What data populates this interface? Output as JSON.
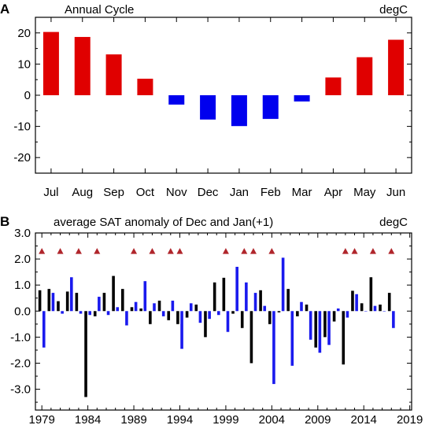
{
  "panel_a": {
    "letter": "A",
    "title": "Annual Cycle",
    "units": "degC"
  },
  "panel_b": {
    "letter": "B",
    "title": "average SAT anomaly of Dec and Jan(+1)",
    "units": "degC"
  },
  "colors": {
    "positive": "#e00000",
    "negative": "#0000ee",
    "series_black": "#000000",
    "series_blue": "#1a1aee",
    "marker": "#b0262c"
  },
  "chart_data": [
    {
      "type": "bar",
      "categories": [
        "Jul",
        "Aug",
        "Sep",
        "Oct",
        "Nov",
        "Dec",
        "Jan",
        "Feb",
        "Mar",
        "Apr",
        "May",
        "Jun"
      ],
      "values": [
        20.3,
        18.7,
        13.1,
        5.3,
        -3.0,
        -7.8,
        -9.9,
        -7.6,
        -2.0,
        5.7,
        12.2,
        17.8
      ],
      "ylim": [
        -25,
        25
      ],
      "yticks": [
        20,
        10,
        0,
        -10,
        -20
      ],
      "ytick_labels": [
        "20",
        "10",
        "0",
        "-10",
        "-20"
      ]
    },
    {
      "type": "bar",
      "x_ticks": [
        1979,
        1984,
        1989,
        1994,
        1999,
        2004,
        2009,
        2014,
        2019
      ],
      "ylim": [
        -3.8,
        3.0
      ],
      "yticks": [
        3.0,
        2.0,
        1.0,
        0.0,
        -1.0,
        -2.0,
        -3.0
      ],
      "ytick_labels": [
        "3.0",
        "2.0",
        "1.0",
        "0.0",
        "-1.0",
        "-2.0",
        "-3.0"
      ],
      "series": [
        {
          "values": [
            {
              "x": 1979,
              "y": 0.8
            },
            {
              "x": 1980,
              "y": 0.85
            },
            {
              "x": 1981,
              "y": 0.38
            },
            {
              "x": 1982,
              "y": 0.75
            },
            {
              "x": 1983,
              "y": 0.7
            },
            {
              "x": 1984,
              "y": -3.3
            },
            {
              "x": 1985,
              "y": -0.2
            },
            {
              "x": 1986,
              "y": 0.7
            },
            {
              "x": 1987,
              "y": 1.35
            },
            {
              "x": 1988,
              "y": 0.85
            },
            {
              "x": 1989,
              "y": 0.15
            },
            {
              "x": 1990,
              "y": 0.1
            },
            {
              "x": 1991,
              "y": -0.5
            },
            {
              "x": 1992,
              "y": 0.4
            },
            {
              "x": 1993,
              "y": -0.35
            },
            {
              "x": 1994,
              "y": -0.5
            },
            {
              "x": 1995,
              "y": -0.25
            },
            {
              "x": 1996,
              "y": 0.25
            },
            {
              "x": 1997,
              "y": -1.0
            },
            {
              "x": 1998,
              "y": 1.1
            },
            {
              "x": 1999,
              "y": 1.28
            },
            {
              "x": 2000,
              "y": -0.1
            },
            {
              "x": 2001,
              "y": -0.65
            },
            {
              "x": 2002,
              "y": -2.0
            },
            {
              "x": 2003,
              "y": 0.8
            },
            {
              "x": 2004,
              "y": -0.5
            },
            {
              "x": 2005,
              "y": -0.05
            },
            {
              "x": 2006,
              "y": 0.85
            },
            {
              "x": 2007,
              "y": -0.2
            },
            {
              "x": 2008,
              "y": 0.25
            },
            {
              "x": 2009,
              "y": -1.4
            },
            {
              "x": 2010,
              "y": -1.0
            },
            {
              "x": 2011,
              "y": -0.4
            },
            {
              "x": 2012,
              "y": -2.05
            },
            {
              "x": 2013,
              "y": 0.78
            },
            {
              "x": 2014,
              "y": 0.3
            },
            {
              "x": 2015,
              "y": 1.3
            },
            {
              "x": 2016,
              "y": 0.25
            },
            {
              "x": 2017,
              "y": 0.7
            }
          ]
        },
        {
          "values": [
            {
              "x": 1979,
              "y": -1.4
            },
            {
              "x": 1980,
              "y": 0.7
            },
            {
              "x": 1981,
              "y": -0.1
            },
            {
              "x": 1982,
              "y": 1.3
            },
            {
              "x": 1983,
              "y": -0.1
            },
            {
              "x": 1984,
              "y": -0.15
            },
            {
              "x": 1985,
              "y": 0.55
            },
            {
              "x": 1986,
              "y": -0.15
            },
            {
              "x": 1987,
              "y": 0.15
            },
            {
              "x": 1988,
              "y": -0.55
            },
            {
              "x": 1989,
              "y": 0.35
            },
            {
              "x": 1990,
              "y": 1.15
            },
            {
              "x": 1991,
              "y": 0.3
            },
            {
              "x": 1992,
              "y": -0.2
            },
            {
              "x": 1993,
              "y": 0.4
            },
            {
              "x": 1994,
              "y": -1.45
            },
            {
              "x": 1995,
              "y": 0.3
            },
            {
              "x": 1996,
              "y": -0.45
            },
            {
              "x": 1997,
              "y": -0.3
            },
            {
              "x": 1998,
              "y": -0.15
            },
            {
              "x": 1999,
              "y": -0.8
            },
            {
              "x": 2000,
              "y": 1.7
            },
            {
              "x": 2001,
              "y": 1.1
            },
            {
              "x": 2002,
              "y": 0.7
            },
            {
              "x": 2003,
              "y": 0.2
            },
            {
              "x": 2004,
              "y": -2.8
            },
            {
              "x": 2005,
              "y": 2.05
            },
            {
              "x": 2006,
              "y": -2.1
            },
            {
              "x": 2007,
              "y": 0.35
            },
            {
              "x": 2008,
              "y": -1.1
            },
            {
              "x": 2009,
              "y": -1.6
            },
            {
              "x": 2010,
              "y": -1.3
            },
            {
              "x": 2011,
              "y": 0.1
            },
            {
              "x": 2012,
              "y": -0.25
            },
            {
              "x": 2013,
              "y": 0.65
            },
            {
              "x": 2014,
              "y": 0.0
            },
            {
              "x": 2015,
              "y": 0.2
            },
            {
              "x": 2016,
              "y": 0.0
            },
            {
              "x": 2017,
              "y": -0.65
            }
          ]
        }
      ],
      "markers": [
        {
          "x": 1979
        },
        {
          "x": 1981
        },
        {
          "x": 1983
        },
        {
          "x": 1985
        },
        {
          "x": 1989
        },
        {
          "x": 1991
        },
        {
          "x": 1993
        },
        {
          "x": 1994
        },
        {
          "x": 1999
        },
        {
          "x": 2001
        },
        {
          "x": 2002
        },
        {
          "x": 2004
        },
        {
          "x": 2012
        },
        {
          "x": 2013
        },
        {
          "x": 2015
        },
        {
          "x": 2017
        }
      ],
      "marker_y": 2.3
    }
  ]
}
